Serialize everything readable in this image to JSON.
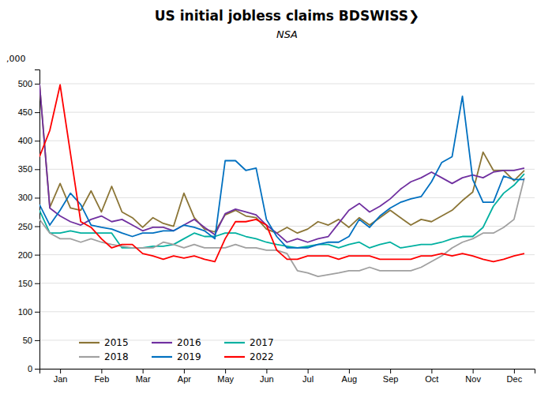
{
  "chart_data": {
    "type": "line",
    "title": "US initial jobless claims BDSWISS❯",
    "subtitle": "NSA",
    "ylabel": ",000",
    "x": [
      0,
      0.25,
      0.5,
      0.75,
      1,
      1.25,
      1.5,
      1.75,
      2,
      2.25,
      2.5,
      2.75,
      3,
      3.25,
      3.5,
      3.75,
      4,
      4.25,
      4.5,
      4.75,
      5,
      5.25,
      5.5,
      5.75,
      6,
      6.25,
      6.5,
      6.75,
      7,
      7.25,
      7.5,
      7.75,
      8,
      8.25,
      8.5,
      8.75,
      9,
      9.25,
      9.5,
      9.75,
      10,
      10.25,
      10.5,
      10.75,
      11,
      11.25,
      11.5,
      11.75
    ],
    "xlim": [
      0,
      12
    ],
    "xticks": [
      {
        "value": 0.5,
        "label": "Jan"
      },
      {
        "value": 1.5,
        "label": "Feb"
      },
      {
        "value": 2.5,
        "label": "Mar"
      },
      {
        "value": 3.5,
        "label": "Apr"
      },
      {
        "value": 4.5,
        "label": "May"
      },
      {
        "value": 5.5,
        "label": "Jun"
      },
      {
        "value": 6.5,
        "label": "Jul"
      },
      {
        "value": 7.5,
        "label": "Aug"
      },
      {
        "value": 8.5,
        "label": "Sep"
      },
      {
        "value": 9.5,
        "label": "Oct"
      },
      {
        "value": 10.5,
        "label": "Nov"
      },
      {
        "value": 11.5,
        "label": "Dec"
      }
    ],
    "ylim": [
      0,
      525
    ],
    "yticks": [
      0,
      50,
      100,
      150,
      200,
      250,
      300,
      350,
      400,
      450,
      500
    ],
    "grid": true,
    "legend": "lower left",
    "series": [
      {
        "name": "2015",
        "color": "#8B7536",
        "values": [
          500,
          283,
          325,
          282,
          278,
          312,
          275,
          320,
          275,
          265,
          248,
          265,
          255,
          250,
          308,
          265,
          245,
          240,
          270,
          278,
          268,
          265,
          245,
          238,
          248,
          238,
          245,
          258,
          252,
          262,
          248,
          265,
          252,
          265,
          278,
          265,
          252,
          262,
          258,
          268,
          278,
          295,
          310,
          380,
          348,
          348,
          330,
          348
        ]
      },
      {
        "name": "2016",
        "color": "#7030A0",
        "values": [
          500,
          282,
          268,
          258,
          252,
          262,
          268,
          258,
          262,
          252,
          242,
          248,
          248,
          242,
          252,
          262,
          248,
          235,
          272,
          280,
          275,
          270,
          252,
          238,
          222,
          228,
          222,
          228,
          232,
          255,
          278,
          290,
          275,
          285,
          298,
          315,
          328,
          335,
          345,
          335,
          325,
          335,
          340,
          335,
          345,
          348,
          348,
          352
        ]
      },
      {
        "name": "2017",
        "color": "#00B0A0",
        "values": [
          278,
          238,
          238,
          242,
          238,
          238,
          238,
          238,
          212,
          212,
          212,
          215,
          215,
          218,
          228,
          238,
          232,
          232,
          238,
          238,
          232,
          228,
          222,
          218,
          215,
          212,
          215,
          218,
          218,
          212,
          218,
          222,
          212,
          218,
          222,
          212,
          215,
          218,
          218,
          222,
          228,
          232,
          232,
          248,
          285,
          308,
          322,
          342
        ]
      },
      {
        "name": "2018",
        "color": "#A0A0A0",
        "values": [
          262,
          238,
          228,
          228,
          222,
          228,
          222,
          218,
          215,
          212,
          212,
          212,
          222,
          218,
          212,
          218,
          212,
          212,
          212,
          218,
          212,
          212,
          208,
          208,
          202,
          172,
          168,
          162,
          165,
          168,
          172,
          172,
          178,
          172,
          172,
          172,
          172,
          178,
          188,
          198,
          212,
          222,
          228,
          238,
          238,
          248,
          262,
          335
        ]
      },
      {
        "name": "2019",
        "color": "#0070C0",
        "values": [
          288,
          252,
          278,
          308,
          288,
          252,
          248,
          245,
          238,
          232,
          238,
          238,
          242,
          242,
          252,
          248,
          242,
          228,
          365,
          365,
          348,
          352,
          262,
          232,
          212,
          212,
          212,
          218,
          222,
          222,
          232,
          262,
          248,
          268,
          282,
          292,
          298,
          302,
          328,
          362,
          372,
          478,
          332,
          292,
          292,
          338,
          332,
          332
        ]
      },
      {
        "name": "2022",
        "color": "#FF0000",
        "values": [
          372,
          418,
          498,
          378,
          258,
          248,
          228,
          212,
          218,
          218,
          202,
          198,
          192,
          198,
          194,
          198,
          192,
          188,
          228,
          258,
          258,
          262,
          252,
          208,
          192,
          192,
          198,
          198,
          198,
          192,
          198,
          198,
          198,
          192,
          192,
          192,
          192,
          198,
          198,
          202,
          198,
          202,
          198,
          192,
          188,
          192,
          198,
          202
        ]
      }
    ]
  }
}
